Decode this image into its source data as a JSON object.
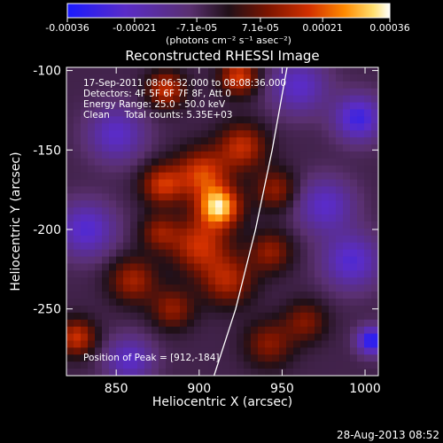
{
  "chart_data": {
    "type": "heatmap",
    "title": "Reconstructed RHESSI Image",
    "xlabel": "Heliocentric X (arcsec)",
    "ylabel": "Heliocentric Y (arcsec)",
    "xlim": [
      820,
      1008
    ],
    "ylim": [
      -292,
      -98
    ],
    "xticks": [
      "850",
      "900",
      "950",
      "1000"
    ],
    "yticks": [
      "-100",
      "-150",
      "-200",
      "-250"
    ],
    "x_tick_values": [
      850,
      900,
      950,
      1000
    ],
    "y_tick_values": [
      -100,
      -150,
      -200,
      -250
    ],
    "colorbar": {
      "range": [
        -0.00036,
        0.00036
      ],
      "tick_values": [
        -0.00036,
        -0.00021,
        -7.1e-05,
        7.1e-05,
        0.00021,
        0.00036
      ],
      "tick_labels": [
        "-0.00036",
        "-0.00021",
        "-7.1e-05",
        "7.1e-05",
        "0.00021",
        "0.00036"
      ],
      "units": "(photons cm⁻² s⁻¹ asec⁻²)"
    },
    "annotations": [
      "17-Sep-2011 08:06:32.000 to 08:08:36.000",
      "Detectors: 4F 5F 6F 7F 8F, Att 0",
      "Energy Range: 25.0 - 50.0 keV",
      "Clean     Total counts: 5.35E+03"
    ],
    "peak_label": "Position of Peak = [912,-184]",
    "peak": [
      912,
      -184
    ],
    "limb_curve": [
      [
        909,
        -292
      ],
      [
        922,
        -250
      ],
      [
        934,
        -200
      ],
      [
        944,
        -150
      ],
      [
        953,
        -98
      ]
    ],
    "sources": [
      {
        "x": 912,
        "y": -186,
        "amp": 0.00036,
        "sigma": 9
      },
      {
        "x": 902,
        "y": -165,
        "amp": 0.00024,
        "sigma": 11
      },
      {
        "x": 878,
        "y": -172,
        "amp": 0.00022,
        "sigma": 9
      },
      {
        "x": 926,
        "y": -148,
        "amp": 0.00021,
        "sigma": 10
      },
      {
        "x": 900,
        "y": -210,
        "amp": 0.00022,
        "sigma": 12
      },
      {
        "x": 860,
        "y": -232,
        "amp": 0.00018,
        "sigma": 10
      },
      {
        "x": 884,
        "y": -250,
        "amp": 0.00016,
        "sigma": 9
      },
      {
        "x": 917,
        "y": -232,
        "amp": 0.00019,
        "sigma": 11
      },
      {
        "x": 943,
        "y": -214,
        "amp": 0.00016,
        "sigma": 9
      },
      {
        "x": 942,
        "y": -272,
        "amp": 0.00015,
        "sigma": 10
      },
      {
        "x": 964,
        "y": -258,
        "amp": 0.00014,
        "sigma": 9
      },
      {
        "x": 880,
        "y": -112,
        "amp": 0.00022,
        "sigma": 8
      },
      {
        "x": 924,
        "y": -104,
        "amp": 0.00024,
        "sigma": 8
      },
      {
        "x": 946,
        "y": -175,
        "amp": 0.00016,
        "sigma": 9
      },
      {
        "x": 826,
        "y": -268,
        "amp": 0.00022,
        "sigma": 8
      },
      {
        "x": 876,
        "y": -202,
        "amp": 0.00015,
        "sigma": 8
      },
      {
        "x": 960,
        "y": -110,
        "amp": -0.00018,
        "sigma": 12
      },
      {
        "x": 996,
        "y": -130,
        "amp": -0.00024,
        "sigma": 10
      },
      {
        "x": 1004,
        "y": -270,
        "amp": -0.0003,
        "sigma": 6
      },
      {
        "x": 992,
        "y": -220,
        "amp": -0.0002,
        "sigma": 12
      },
      {
        "x": 832,
        "y": -200,
        "amp": -0.0002,
        "sigma": 12
      },
      {
        "x": 850,
        "y": -140,
        "amp": -0.00018,
        "sigma": 12
      },
      {
        "x": 976,
        "y": -185,
        "amp": -0.00018,
        "sigma": 12
      },
      {
        "x": 858,
        "y": -282,
        "amp": -0.00018,
        "sigma": 10
      }
    ],
    "grid": false
  },
  "footer": {
    "date": "28-Aug-2013 08:52"
  }
}
